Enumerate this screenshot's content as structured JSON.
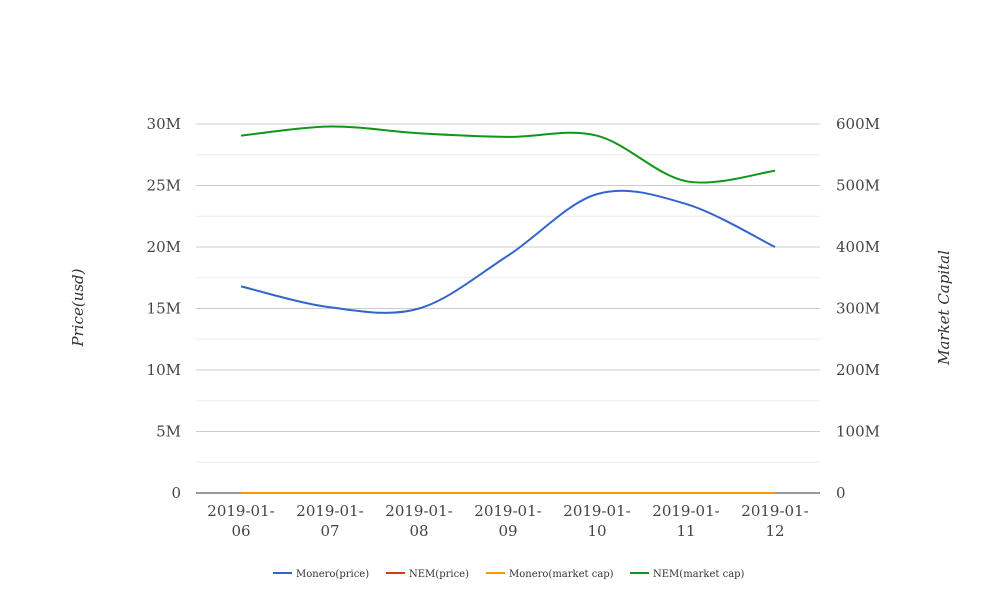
{
  "chart_data": {
    "type": "line",
    "x": [
      "2019-01-06",
      "2019-01-07",
      "2019-01-08",
      "2019-01-09",
      "2019-01-10",
      "2019-01-11",
      "2019-01-12"
    ],
    "x_tick_labels": [
      [
        "2019-01-",
        "06"
      ],
      [
        "2019-01-",
        "07"
      ],
      [
        "2019-01-",
        "08"
      ],
      [
        "2019-01-",
        "09"
      ],
      [
        "2019-01-",
        "10"
      ],
      [
        "2019-01-",
        "11"
      ],
      [
        "2019-01-",
        "12"
      ]
    ],
    "y_left": {
      "label": "Price(usd)",
      "ylim": [
        0,
        30000000
      ],
      "ticks": [
        0,
        5000000,
        10000000,
        15000000,
        20000000,
        25000000,
        30000000
      ],
      "tick_labels": [
        "0",
        "5M",
        "10M",
        "15M",
        "20M",
        "25M",
        "30M"
      ]
    },
    "y_right": {
      "label": "Market Capital",
      "ylim": [
        0,
        600000000
      ],
      "ticks": [
        0,
        100000000,
        200000000,
        300000000,
        400000000,
        500000000,
        600000000
      ],
      "tick_labels": [
        "0",
        "100M",
        "200M",
        "300M",
        "400M",
        "500M",
        "600M"
      ]
    },
    "grid": true,
    "legend_position": "bottom",
    "series": [
      {
        "name": "Monero(price)",
        "axis": "left",
        "color": "#3366cc",
        "values": [
          16800000,
          15100000,
          15000000,
          19300000,
          24300000,
          23500000,
          20000000
        ]
      },
      {
        "name": "NEM(price)",
        "axis": "left",
        "color": "#dc3912",
        "values": [
          0.06,
          0.06,
          0.06,
          0.06,
          0.06,
          0.06,
          0.05
        ]
      },
      {
        "name": "Monero(market cap)",
        "axis": "left",
        "color": "#ff9900",
        "values": [
          45,
          43,
          42,
          48,
          55,
          54,
          50
        ]
      },
      {
        "name": "NEM(market cap)",
        "axis": "right",
        "color": "#109618",
        "values": [
          581000000,
          596000000,
          585000000,
          579000000,
          581000000,
          507000000,
          524000000
        ]
      }
    ]
  }
}
